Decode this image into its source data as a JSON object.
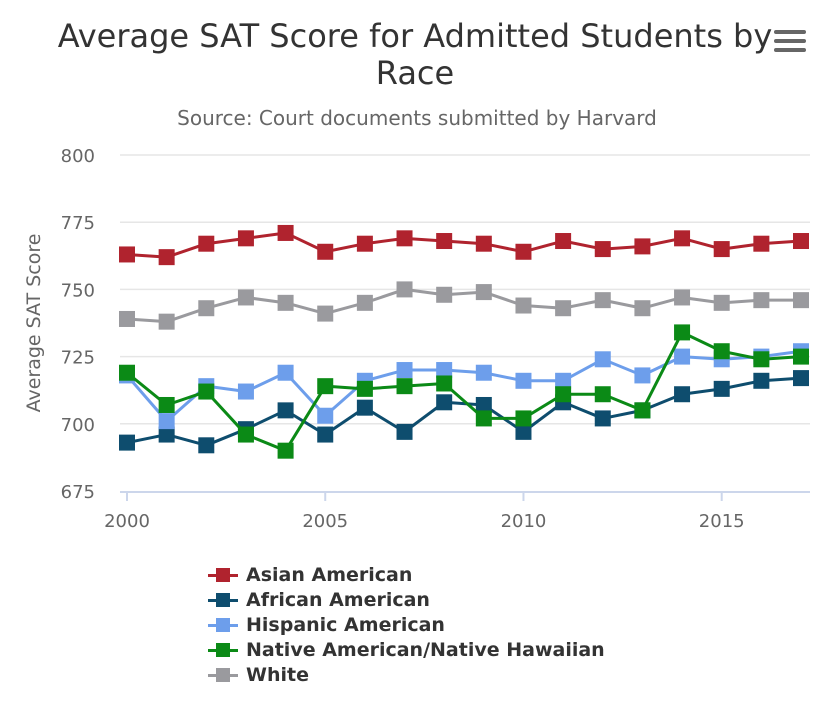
{
  "menu_icon": "hamburger-menu-icon",
  "chart_data": {
    "type": "line",
    "title": "Average SAT Score for Admitted Students by Race",
    "subtitle": "Source: Court documents submitted by Harvard",
    "xlabel": "",
    "ylabel": "Average SAT Score",
    "xlim": [
      2000,
      2017
    ],
    "ylim": [
      675,
      800
    ],
    "yticks": [
      "675",
      "700",
      "725",
      "750",
      "775",
      "800"
    ],
    "xticks": [
      "2000",
      "2005",
      "2010",
      "2015"
    ],
    "grid": true,
    "legend": "bottom",
    "x": [
      2000,
      2001,
      2002,
      2003,
      2004,
      2005,
      2006,
      2007,
      2008,
      2009,
      2010,
      2011,
      2012,
      2013,
      2014,
      2015,
      2016,
      2017
    ],
    "series": [
      {
        "name": "Asian American",
        "color": "#b0232e",
        "values": [
          763,
          762,
          767,
          769,
          771,
          764,
          767,
          769,
          768,
          767,
          764,
          768,
          765,
          766,
          769,
          765,
          767,
          768
        ]
      },
      {
        "name": "African American",
        "color": "#0e4d6e",
        "values": [
          693,
          696,
          692,
          698,
          705,
          696,
          706,
          697,
          708,
          707,
          697,
          708,
          702,
          705,
          711,
          713,
          716,
          717
        ]
      },
      {
        "name": "Hispanic American",
        "color": "#6d9eeb",
        "values": [
          718,
          701,
          714,
          712,
          719,
          703,
          716,
          720,
          720,
          719,
          716,
          716,
          724,
          718,
          725,
          724,
          725,
          727
        ]
      },
      {
        "name": "Native American/Native Hawaiian",
        "color": "#0b8a16",
        "values": [
          719,
          707,
          712,
          696,
          690,
          714,
          713,
          714,
          715,
          702,
          702,
          711,
          711,
          705,
          734,
          727,
          724,
          725
        ]
      },
      {
        "name": "White",
        "color": "#9a9a9e",
        "values": [
          739,
          738,
          743,
          747,
          745,
          741,
          745,
          750,
          748,
          749,
          744,
          743,
          746,
          743,
          747,
          745,
          746,
          746
        ]
      }
    ]
  }
}
